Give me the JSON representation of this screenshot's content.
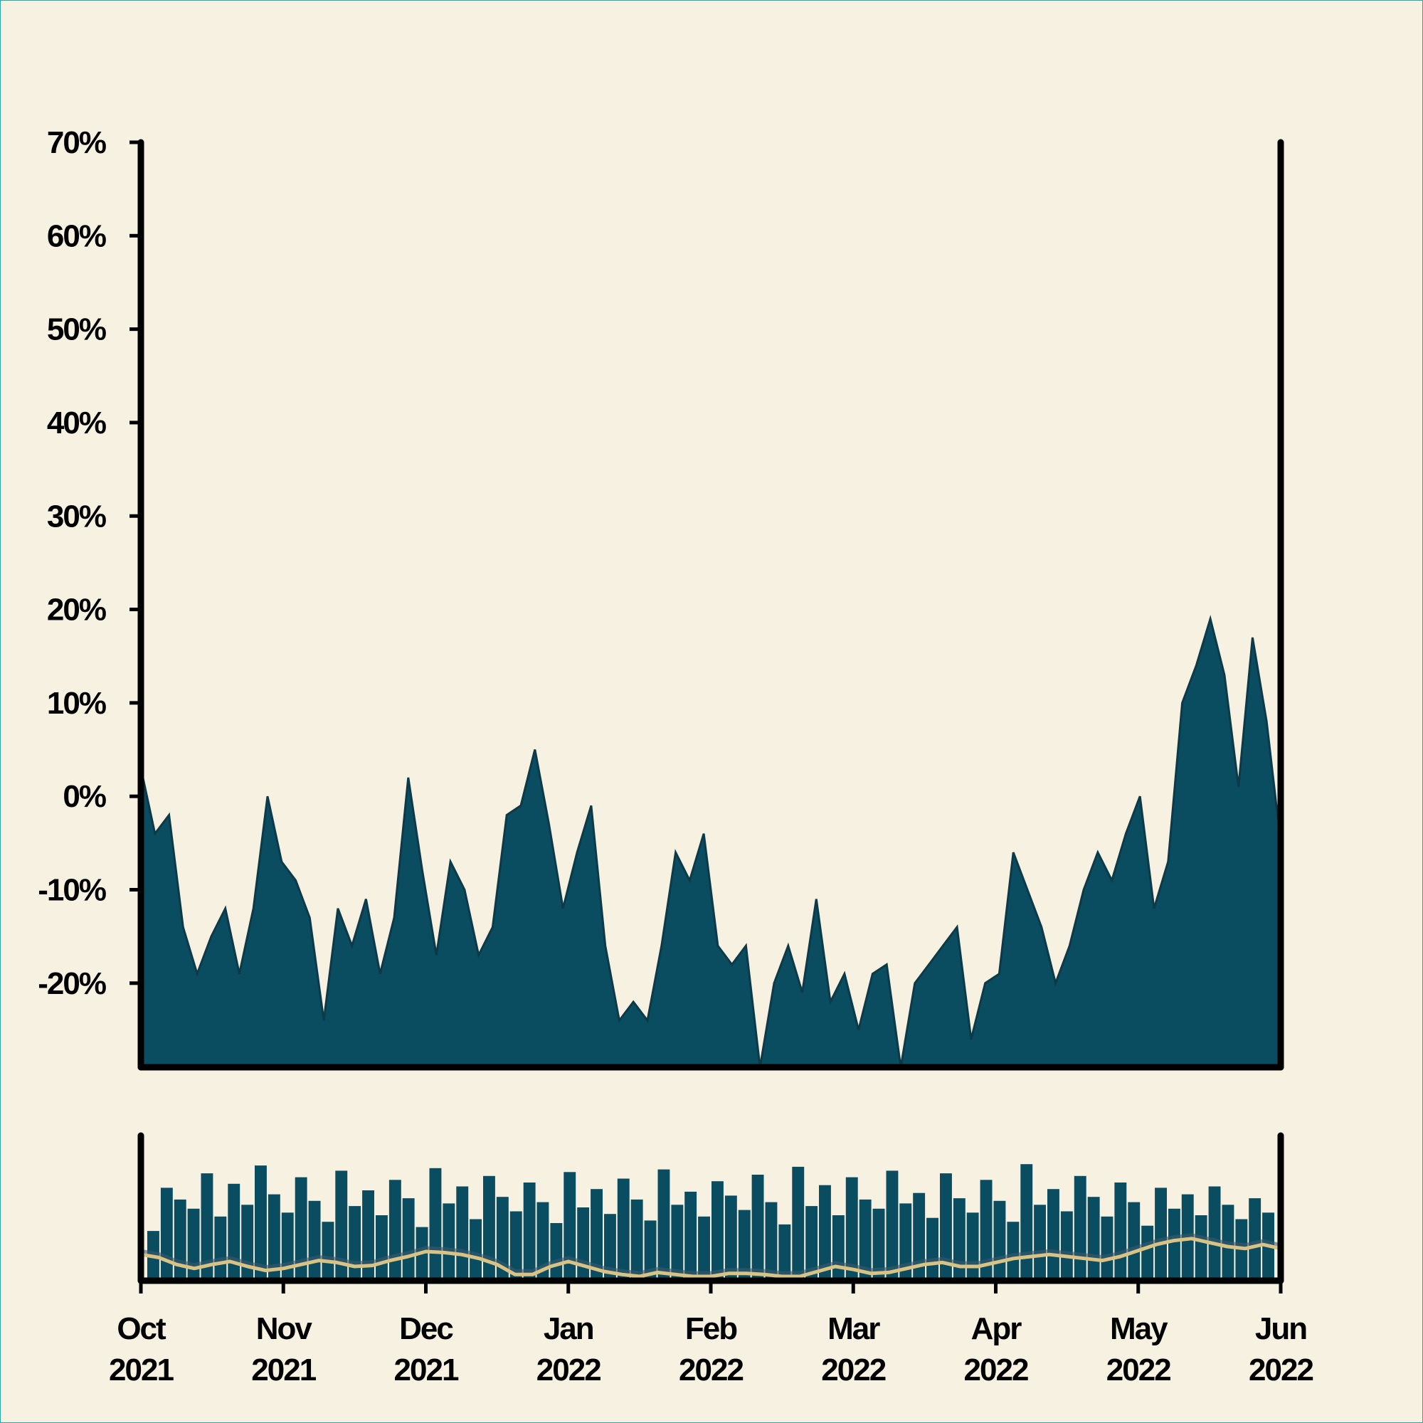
{
  "colors": {
    "background": "#f6f1e1",
    "area": "#0a4c60",
    "area_edge": "#0c3a48",
    "moving_average": "#d9c384",
    "moving_average_shadow": "#3d5a6e",
    "axis": "#000000"
  },
  "chart_data": [
    {
      "type": "area",
      "title": "",
      "xlabel": "",
      "ylabel": "",
      "ylim": [
        -29,
        70
      ],
      "y_ticks": [
        "70%",
        "60%",
        "50%",
        "40%",
        "30%",
        "20%",
        "10%",
        "0%",
        "-10%",
        "-20%"
      ],
      "y_tick_values": [
        70,
        60,
        50,
        40,
        30,
        20,
        10,
        0,
        -10,
        -20
      ],
      "x_range": [
        "2021-10-01",
        "2022-06-01"
      ],
      "grid": false,
      "legend": "none",
      "series": [
        {
          "x": [
            "2021-10-01",
            "2021-10-04",
            "2021-10-07",
            "2021-10-10",
            "2021-10-13",
            "2021-10-16",
            "2021-10-19",
            "2021-10-22",
            "2021-10-25",
            "2021-10-28",
            "2021-10-31",
            "2021-11-03",
            "2021-11-06",
            "2021-11-09",
            "2021-11-12",
            "2021-11-15",
            "2021-11-18",
            "2021-11-21",
            "2021-11-24",
            "2021-11-27",
            "2021-11-30",
            "2021-12-03",
            "2021-12-06",
            "2021-12-09",
            "2021-12-12",
            "2021-12-15",
            "2021-12-18",
            "2021-12-21",
            "2021-12-24",
            "2021-12-27",
            "2021-12-30",
            "2022-01-02",
            "2022-01-05",
            "2022-01-08",
            "2022-01-11",
            "2022-01-14",
            "2022-01-17",
            "2022-01-20",
            "2022-01-23",
            "2022-01-26",
            "2022-01-29",
            "2022-02-01",
            "2022-02-04",
            "2022-02-07",
            "2022-02-10",
            "2022-02-13",
            "2022-02-16",
            "2022-02-19",
            "2022-02-22",
            "2022-02-25",
            "2022-02-28",
            "2022-03-03",
            "2022-03-06",
            "2022-03-09",
            "2022-03-12",
            "2022-03-15",
            "2022-03-18",
            "2022-03-21",
            "2022-03-24",
            "2022-03-27",
            "2022-03-30",
            "2022-04-02",
            "2022-04-05",
            "2022-04-08",
            "2022-04-11",
            "2022-04-14",
            "2022-04-17",
            "2022-04-20",
            "2022-04-23",
            "2022-04-26",
            "2022-04-29",
            "2022-05-02",
            "2022-05-05",
            "2022-05-08",
            "2022-05-11",
            "2022-05-14",
            "2022-05-17",
            "2022-05-20",
            "2022-05-23",
            "2022-05-26",
            "2022-05-29",
            "2022-06-01"
          ],
          "values": [
            3,
            -4,
            -2,
            -14,
            -19,
            -15,
            -12,
            -19,
            -12,
            0,
            -7,
            -9,
            -13,
            -24,
            -12,
            -16,
            -11,
            -19,
            -13,
            2,
            -8,
            -17,
            -7,
            -10,
            -17,
            -14,
            -2,
            -1,
            5,
            -3,
            -12,
            -6,
            -1,
            -16,
            -24,
            -22,
            -24,
            -16,
            -6,
            -9,
            -4,
            -16,
            -18,
            -16,
            -29,
            -20,
            -16,
            -21,
            -11,
            -22,
            -19,
            -25,
            -19,
            -18,
            -29,
            -20,
            -18,
            -16,
            -14,
            -26,
            -20,
            -19,
            -6,
            -10,
            -14,
            -20,
            -16,
            -10,
            -6,
            -9,
            -4,
            0,
            -12,
            -7,
            10,
            14,
            19,
            13,
            1,
            17,
            8,
            -5
          ]
        }
      ]
    },
    {
      "type": "bar",
      "title": "",
      "xlabel": "",
      "ylabel": "",
      "x_ticks": [
        "Oct\n2021",
        "Nov\n2021",
        "Dec\n2021",
        "Jan\n2022",
        "Feb\n2022",
        "Mar\n2022",
        "Apr\n2022",
        "May\n2022",
        "Jun\n2022"
      ],
      "x_tick_lines": [
        [
          "Oct",
          "2021"
        ],
        [
          "Nov",
          "2021"
        ],
        [
          "Dec",
          "2021"
        ],
        [
          "Jan",
          "2022"
        ],
        [
          "Feb",
          "2022"
        ],
        [
          "Mar",
          "2022"
        ],
        [
          "Apr",
          "2022"
        ],
        [
          "May",
          "2022"
        ],
        [
          "Jun",
          "2022"
        ]
      ],
      "ylim": [
        0,
        1
      ],
      "series": [
        {
          "kind": "bars",
          "values": [
            0.38,
            0.71,
            0.62,
            0.55,
            0.82,
            0.49,
            0.74,
            0.58,
            0.88,
            0.66,
            0.52,
            0.79,
            0.61,
            0.45,
            0.84,
            0.57,
            0.69,
            0.5,
            0.77,
            0.63,
            0.41,
            0.86,
            0.59,
            0.72,
            0.47,
            0.8,
            0.64,
            0.53,
            0.75,
            0.6,
            0.44,
            0.83,
            0.56,
            0.7,
            0.51,
            0.78,
            0.62,
            0.46,
            0.85,
            0.58,
            0.68,
            0.49,
            0.76,
            0.65,
            0.54,
            0.81,
            0.6,
            0.43,
            0.87,
            0.57,
            0.73,
            0.5,
            0.79,
            0.62,
            0.55,
            0.84,
            0.59,
            0.67,
            0.48,
            0.82,
            0.63,
            0.52,
            0.77,
            0.61,
            0.45,
            0.89,
            0.58,
            0.7,
            0.53,
            0.8,
            0.64,
            0.49,
            0.75,
            0.6,
            0.42,
            0.71,
            0.55,
            0.66,
            0.5,
            0.72,
            0.58,
            0.47,
            0.63,
            0.52
          ]
        },
        {
          "kind": "line",
          "values": [
            0.22,
            0.19,
            0.12,
            0.08,
            0.12,
            0.15,
            0.1,
            0.06,
            0.08,
            0.12,
            0.16,
            0.14,
            0.1,
            0.11,
            0.16,
            0.2,
            0.25,
            0.24,
            0.22,
            0.18,
            0.12,
            0.02,
            0.02,
            0.1,
            0.15,
            0.1,
            0.05,
            0.02,
            0.0,
            0.04,
            0.02,
            0.0,
            0.0,
            0.03,
            0.03,
            0.02,
            0.0,
            0.0,
            0.05,
            0.1,
            0.07,
            0.03,
            0.04,
            0.08,
            0.12,
            0.14,
            0.1,
            0.1,
            0.14,
            0.18,
            0.2,
            0.22,
            0.2,
            0.18,
            0.16,
            0.2,
            0.26,
            0.32,
            0.36,
            0.38,
            0.34,
            0.3,
            0.28,
            0.32,
            0.28
          ]
        }
      ]
    }
  ]
}
